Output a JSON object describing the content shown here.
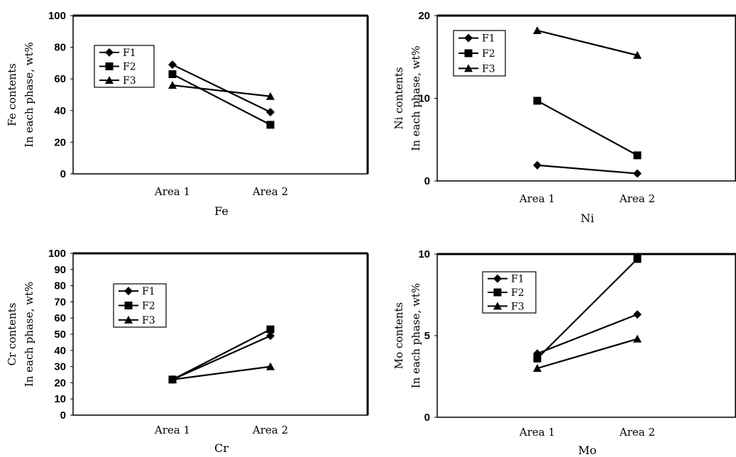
{
  "chart_data": [
    {
      "type": "line",
      "categories": [
        "Area 1",
        "Area 2"
      ],
      "xlabel": "Fe",
      "ylabel": [
        "Fe contents",
        "In each phase, wt%"
      ],
      "ylim": [
        0,
        100
      ],
      "yticks": [
        0,
        20,
        40,
        60,
        80,
        100
      ],
      "legend": "top-left",
      "series": [
        {
          "name": "F1",
          "marker": "diamond",
          "values": [
            69,
            39
          ]
        },
        {
          "name": "F2",
          "marker": "square",
          "values": [
            63,
            31
          ]
        },
        {
          "name": "F3",
          "marker": "triangle",
          "values": [
            56,
            49
          ]
        }
      ]
    },
    {
      "type": "line",
      "categories": [
        "Area 1",
        "Area 2"
      ],
      "xlabel": "Ni",
      "ylabel": [
        "Ni contents",
        "In each phase, wt%"
      ],
      "ylim": [
        0,
        20
      ],
      "yticks": [
        0,
        10,
        20
      ],
      "legend": "top-left",
      "series": [
        {
          "name": "F1",
          "marker": "diamond",
          "values": [
            1.9,
            0.9
          ]
        },
        {
          "name": "F2",
          "marker": "square",
          "values": [
            9.7,
            3.1
          ]
        },
        {
          "name": "F3",
          "marker": "triangle",
          "values": [
            18.2,
            15.2
          ]
        }
      ]
    },
    {
      "type": "line",
      "categories": [
        "Area 1",
        "Area 2"
      ],
      "xlabel": "Cr",
      "ylabel": [
        "Cr contents",
        "In each phase, wt%"
      ],
      "ylim": [
        0,
        100
      ],
      "yticks": [
        0,
        10,
        20,
        30,
        40,
        50,
        60,
        70,
        80,
        90,
        100
      ],
      "legend": "top-left",
      "series": [
        {
          "name": "F1",
          "marker": "diamond",
          "values": [
            22,
            49
          ]
        },
        {
          "name": "F2",
          "marker": "square",
          "values": [
            22,
            53
          ]
        },
        {
          "name": "F3",
          "marker": "triangle",
          "values": [
            22,
            30
          ]
        }
      ]
    },
    {
      "type": "line",
      "categories": [
        "Area 1",
        "Area 2"
      ],
      "xlabel": "Mo",
      "ylabel": [
        "Mo contents",
        "In each phase, wt%"
      ],
      "ylim": [
        0,
        10
      ],
      "yticks": [
        0,
        5,
        10
      ],
      "legend": "top-left",
      "series": [
        {
          "name": "F1",
          "marker": "diamond",
          "values": [
            3.9,
            6.3
          ]
        },
        {
          "name": "F2",
          "marker": "square",
          "values": [
            3.6,
            9.7
          ]
        },
        {
          "name": "F3",
          "marker": "triangle",
          "values": [
            3.0,
            4.8
          ]
        }
      ]
    }
  ]
}
